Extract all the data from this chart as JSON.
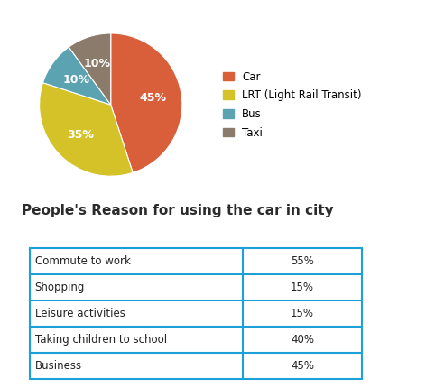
{
  "pie_labels": [
    "Car",
    "LRT (Light Rail Transit)",
    "Bus",
    "Taxi"
  ],
  "pie_values": [
    45,
    35,
    10,
    10
  ],
  "pie_colors": [
    "#D95F3B",
    "#D4C228",
    "#5BA3B0",
    "#8B7B6B"
  ],
  "pie_text_labels": [
    "45%",
    "35%",
    "10%",
    "10%"
  ],
  "legend_labels": [
    "Car",
    "LRT (Light Rail Transit)",
    "Bus",
    "Taxi"
  ],
  "legend_colors": [
    "#D95F3B",
    "#D4C228",
    "#5BA3B0",
    "#8B7B6B"
  ],
  "table_title": "People's Reason for using the car in city",
  "table_rows": [
    [
      "Commute to work",
      "55%"
    ],
    [
      "Shopping",
      "15%"
    ],
    [
      "Leisure activities",
      "15%"
    ],
    [
      "Taking children to school",
      "40%"
    ],
    [
      "Business",
      "45%"
    ]
  ],
  "table_border_color": "#1BA0D8",
  "background_color": "#FFFFFF",
  "title_color": "#2B2B2B",
  "title_fontsize": 11,
  "table_fontsize": 8.5,
  "pie_label_fontsize": 9,
  "legend_fontsize": 8.5
}
